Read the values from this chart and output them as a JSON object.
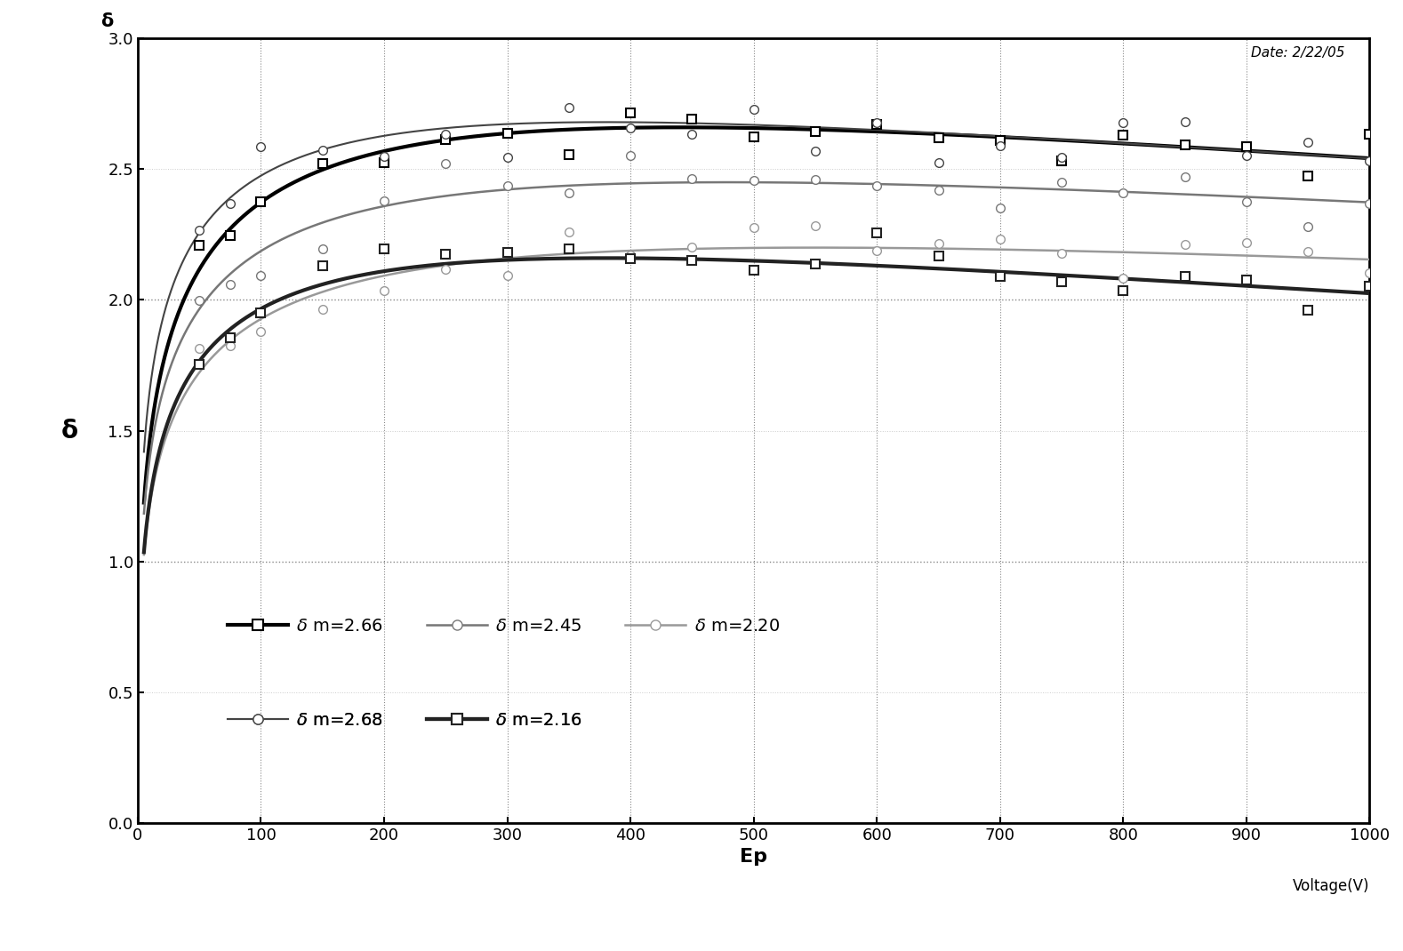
{
  "title_annotation": "Date: 2/22/05",
  "ylabel": "δ",
  "xlabel": "Ep",
  "xlabel2": "Voltage(V)",
  "xlim": [
    0,
    1000
  ],
  "ylim": [
    0.0,
    3.0
  ],
  "xticks": [
    0,
    100,
    200,
    300,
    400,
    500,
    600,
    700,
    800,
    900,
    1000
  ],
  "yticks": [
    0.0,
    0.5,
    1.0,
    1.5,
    2.0,
    2.5,
    3.0
  ],
  "series": [
    {
      "label": "δ m=2.66",
      "delta_m": 2.66,
      "color": "#000000",
      "linewidth": 3.0,
      "marker": "s",
      "markersize": 7,
      "markerfacecolor": "white",
      "markeredgecolor": "#000000",
      "markeredgewidth": 1.5,
      "Ep_m": 440,
      "alpha": 0.35
    },
    {
      "label": "δ m=2.68",
      "delta_m": 2.68,
      "color": "#444444",
      "linewidth": 1.5,
      "marker": "o",
      "markersize": 7,
      "markerfacecolor": "white",
      "markeredgecolor": "#444444",
      "markeredgewidth": 1.0,
      "Ep_m": 380,
      "alpha": 0.32
    },
    {
      "label": "δ m=2.45",
      "delta_m": 2.45,
      "color": "#777777",
      "linewidth": 1.8,
      "marker": "o",
      "markersize": 7,
      "markerfacecolor": "white",
      "markeredgecolor": "#777777",
      "markeredgewidth": 1.0,
      "Ep_m": 480,
      "alpha": 0.33
    },
    {
      "label": "δ m=2.20",
      "delta_m": 2.2,
      "color": "#999999",
      "linewidth": 1.8,
      "marker": "o",
      "markersize": 7,
      "markerfacecolor": "white",
      "markeredgecolor": "#999999",
      "markeredgewidth": 1.0,
      "Ep_m": 550,
      "alpha": 0.33
    },
    {
      "label": "δ m=2.16",
      "delta_m": 2.16,
      "color": "#222222",
      "linewidth": 3.0,
      "marker": "s",
      "markersize": 7,
      "markerfacecolor": "white",
      "markeredgecolor": "#222222",
      "markeredgewidth": 1.5,
      "Ep_m": 380,
      "alpha": 0.35
    }
  ],
  "scatter_noise": 0.055,
  "scatter_x_points": [
    50,
    75,
    100,
    150,
    200,
    250,
    300,
    350,
    400,
    450,
    500,
    550,
    600,
    650,
    700,
    750,
    800,
    850,
    900,
    950,
    1000
  ],
  "background_color": "#ffffff",
  "grid_color": "#888888",
  "dotted_hlines": [
    1.0,
    2.0
  ],
  "dotted_hline_color": "#888888"
}
